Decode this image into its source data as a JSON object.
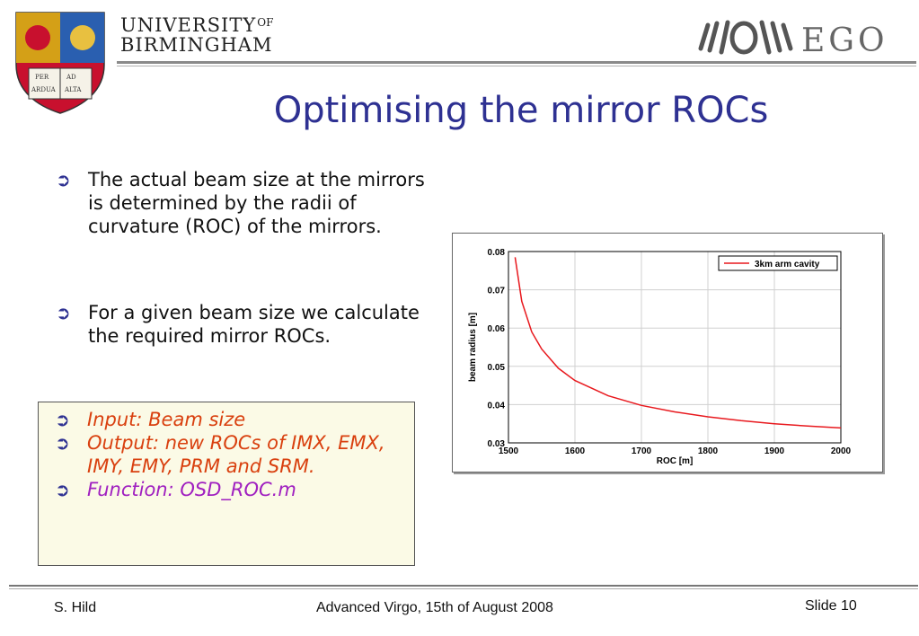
{
  "header": {
    "university_line1": "UNIVERSITY",
    "university_of": "OF",
    "university_line2": "BIRMINGHAM",
    "crest_motto": [
      "PER",
      "AD",
      "ARDUA",
      "ALTA"
    ],
    "ego_logo_text": "EGO",
    "icon_crest": "university-crest-logo",
    "icon_ego": "ego-logo"
  },
  "slide": {
    "title": "Optimising the mirror ROCs",
    "bullets": [
      {
        "text": "The actual beam size at the mirrors is determined by the radii of curvature (ROC) of the mirrors."
      },
      {
        "text": "For a given beam size we calculate the required mirror ROCs."
      }
    ],
    "box_items": [
      {
        "text": "Input: Beam size",
        "color": "#d9400f"
      },
      {
        "text": "Output: new ROCs of IMX, EMX, IMY, EMY, PRM and SRM.",
        "color": "#d9400f"
      },
      {
        "text": "Function: OSD_ROC.m",
        "color": "#a020c0"
      }
    ],
    "title_color": "#2e3192",
    "box_background": "#fbfae6"
  },
  "chart_data": {
    "type": "line",
    "xlabel": "ROC [m]",
    "ylabel": "beam radius [m]",
    "xlim": [
      1500,
      2000
    ],
    "ylim": [
      0.03,
      0.08
    ],
    "xticks": [
      1500,
      1600,
      1700,
      1800,
      1900,
      2000
    ],
    "yticks": [
      0.03,
      0.04,
      0.05,
      0.06,
      0.07,
      0.08
    ],
    "grid": true,
    "legend_position": "top-right",
    "series": [
      {
        "name": "3km arm cavity",
        "color": "#e8191e",
        "x": [
          1510,
          1520,
          1535,
          1550,
          1575,
          1600,
          1650,
          1700,
          1750,
          1800,
          1850,
          1900,
          1950,
          2000
        ],
        "y": [
          0.0785,
          0.067,
          0.059,
          0.0545,
          0.0495,
          0.0463,
          0.0423,
          0.0398,
          0.0381,
          0.0368,
          0.0358,
          0.035,
          0.0344,
          0.0339
        ]
      }
    ]
  },
  "footer": {
    "author": "S. Hild",
    "event": "Advanced Virgo, 15th of August 2008",
    "slide_number": "Slide 10"
  }
}
